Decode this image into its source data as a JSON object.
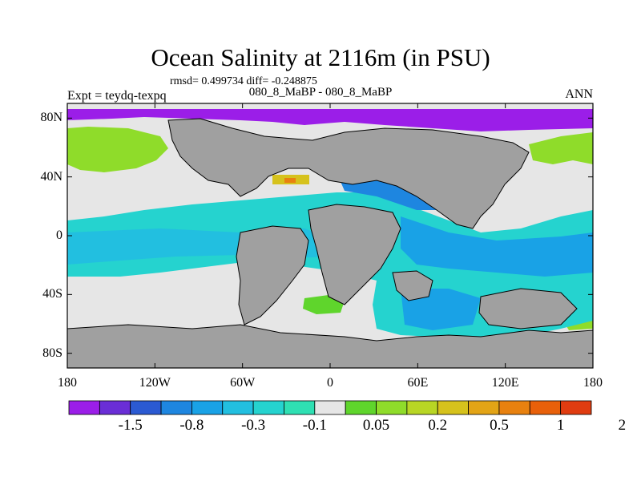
{
  "title": "Ocean Salinity at 2116m (in PSU)",
  "stats_line": "rmsd= 0.499734 diff= -0.248875",
  "cases_line": "080_8_MaBP - 080_8_MaBP",
  "left_label": "Expt = teydq-texpq",
  "right_label": "ANN",
  "map": {
    "lon_range": [
      -180,
      180
    ],
    "lat_range": [
      -90,
      90
    ],
    "lat_ticks": [
      {
        "value": 80,
        "label": "80N"
      },
      {
        "value": 40,
        "label": "40N"
      },
      {
        "value": 0,
        "label": "0"
      },
      {
        "value": -40,
        "label": "40S"
      },
      {
        "value": -80,
        "label": "80S"
      }
    ],
    "lon_ticks": [
      {
        "value": -180,
        "label": "180"
      },
      {
        "value": -120,
        "label": "120W"
      },
      {
        "value": -60,
        "label": "60W"
      },
      {
        "value": 0,
        "label": "0"
      },
      {
        "value": 60,
        "label": "60E"
      },
      {
        "value": 120,
        "label": "120E"
      },
      {
        "value": 180,
        "label": "180"
      }
    ],
    "land_color": "#a0a0a0"
  },
  "colorbar": {
    "colors": [
      "#9b1ee8",
      "#6a2ed6",
      "#2b5ad2",
      "#1e86e0",
      "#19a2e6",
      "#22bfe0",
      "#25d3cf",
      "#2fe0b3",
      "#e6e6e6",
      "#5fd52c",
      "#8fdc2a",
      "#b8d624",
      "#d6c21c",
      "#e3a416",
      "#e8810f",
      "#e8600a",
      "#e03c10"
    ],
    "labels": [
      "-1.5",
      "-0.8",
      "-0.3",
      "-0.1",
      "0.05",
      "0.2",
      "0.5",
      "1",
      "2"
    ]
  }
}
